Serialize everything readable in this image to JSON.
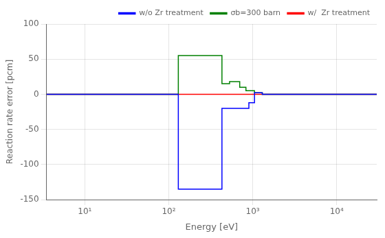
{
  "chart_data": {
    "type": "line",
    "xlabel": "Energy [eV]",
    "ylabel": "Reaction rate error [pcm]",
    "log": "x",
    "xlim": [
      3.5,
      30000
    ],
    "ylim": [
      -150,
      100
    ],
    "xticks": [
      {
        "value": 10,
        "label": "10¹"
      },
      {
        "value": 100,
        "label": "10²"
      },
      {
        "value": 1000,
        "label": "10³"
      },
      {
        "value": 10000,
        "label": "10⁴"
      }
    ],
    "yticks": [
      -150,
      -100,
      -50,
      0,
      50,
      100
    ],
    "grid": true,
    "legend": "upper right",
    "series": [
      {
        "name": "w/o Zr treatment",
        "color": "blue",
        "x": [
          3.5,
          130,
          130,
          430,
          430,
          700,
          700,
          900,
          900,
          1050,
          1050,
          1300,
          1300,
          30000
        ],
        "values": [
          0,
          0,
          -135,
          -135,
          -20,
          -20,
          -20,
          -20,
          -12,
          -12,
          2,
          2,
          0,
          0
        ]
      },
      {
        "name": "σb=300 barn",
        "color": "green",
        "x": [
          3.5,
          130,
          130,
          430,
          430,
          530,
          530,
          700,
          700,
          830,
          830,
          1050,
          1050,
          1300,
          1300,
          30000
        ],
        "values": [
          0,
          0,
          55,
          55,
          15,
          15,
          18,
          18,
          10,
          10,
          5,
          5,
          2,
          2,
          0,
          0
        ]
      },
      {
        "name": "w/  Zr treatment",
        "color": "red",
        "x": [
          3.5,
          30000
        ],
        "values": [
          0,
          0
        ]
      }
    ]
  }
}
